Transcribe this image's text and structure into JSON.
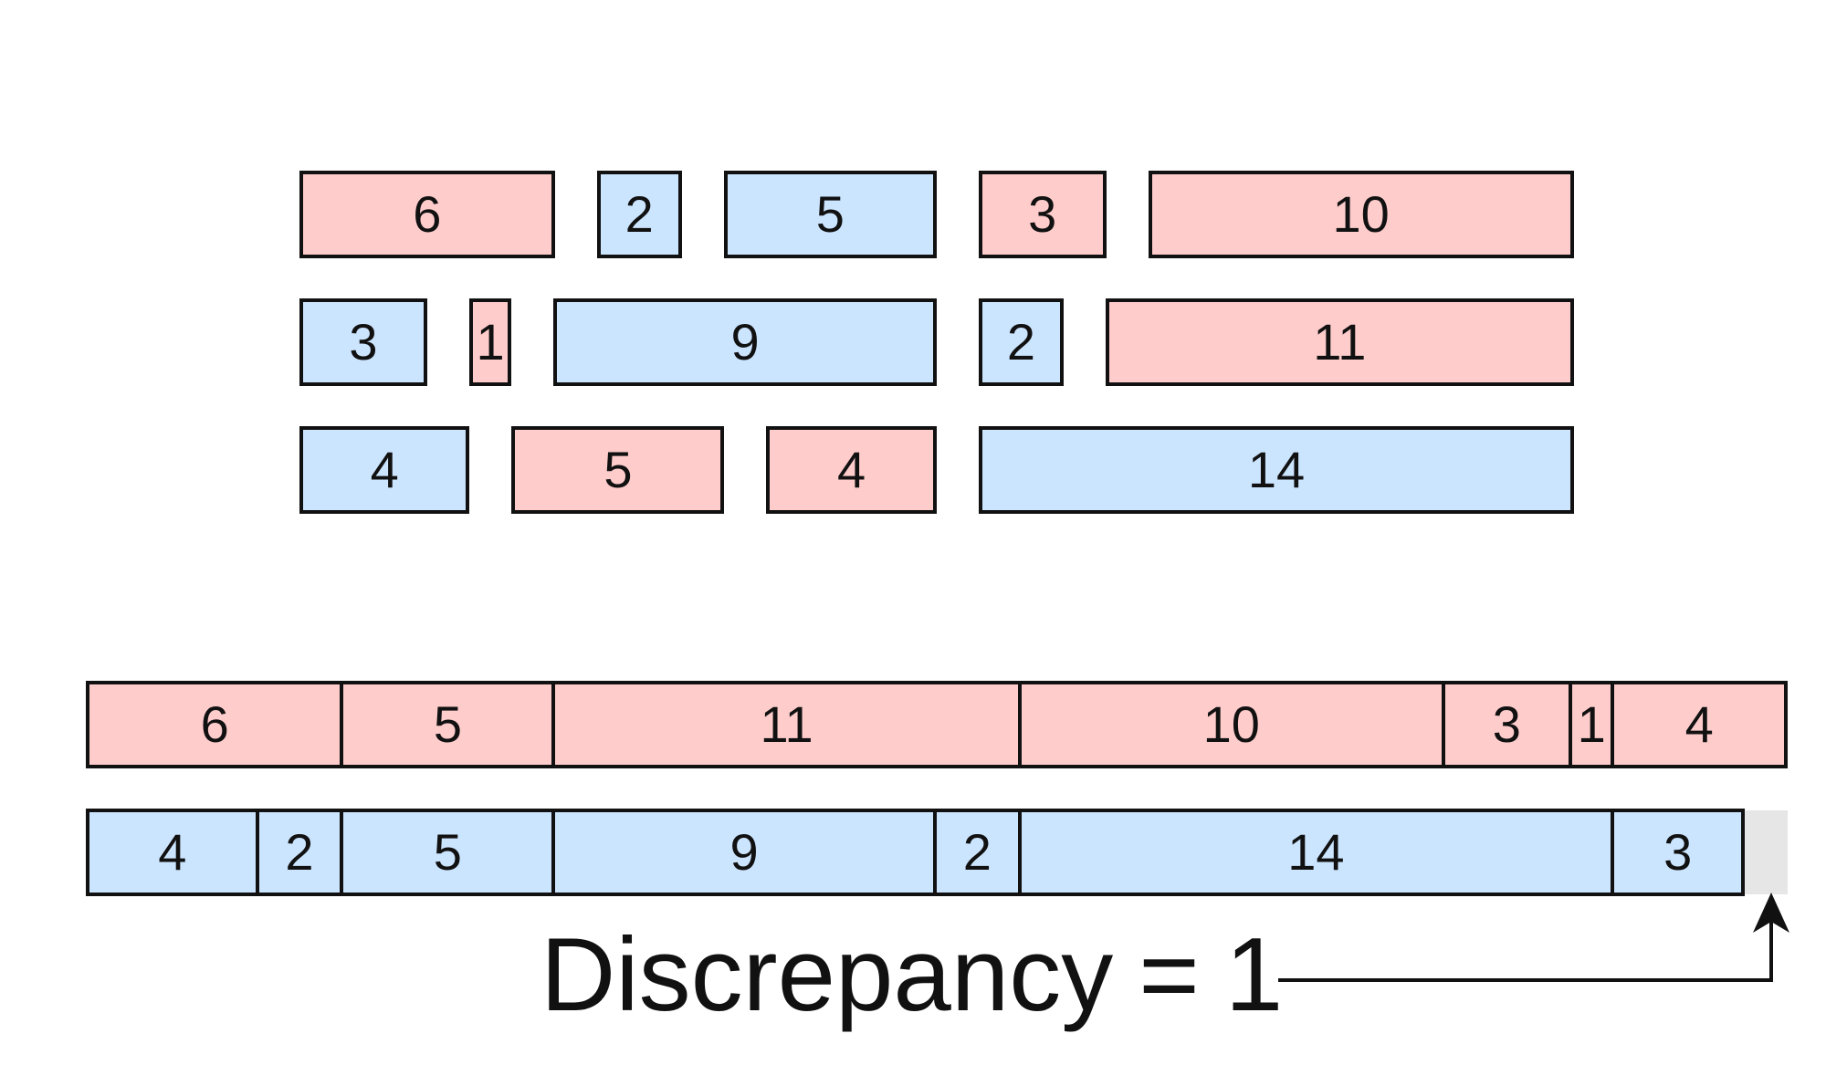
{
  "colors": {
    "red": "#ffcccc",
    "blue": "#cce5ff",
    "gap": "#e6e6e6",
    "stroke": "#111111"
  },
  "pieces": {
    "row1": [
      {
        "value": 6,
        "color": "red"
      },
      {
        "value": 2,
        "color": "blue"
      },
      {
        "value": 5,
        "color": "blue"
      },
      {
        "value": 3,
        "color": "red"
      },
      {
        "value": 10,
        "color": "red"
      }
    ],
    "row2": [
      {
        "value": 3,
        "color": "blue"
      },
      {
        "value": 1,
        "color": "red"
      },
      {
        "value": 9,
        "color": "blue"
      },
      {
        "value": 2,
        "color": "blue"
      },
      {
        "value": 11,
        "color": "red"
      }
    ],
    "row3": [
      {
        "value": 4,
        "color": "blue"
      },
      {
        "value": 5,
        "color": "red"
      },
      {
        "value": 4,
        "color": "red"
      },
      {
        "value": 14,
        "color": "blue"
      }
    ]
  },
  "red_sequence": [
    6,
    5,
    11,
    10,
    3,
    1,
    4
  ],
  "blue_sequence": [
    4,
    2,
    5,
    9,
    2,
    14,
    3
  ],
  "caption": {
    "label": "Discrepancy",
    "operator": "=",
    "value": "1"
  }
}
